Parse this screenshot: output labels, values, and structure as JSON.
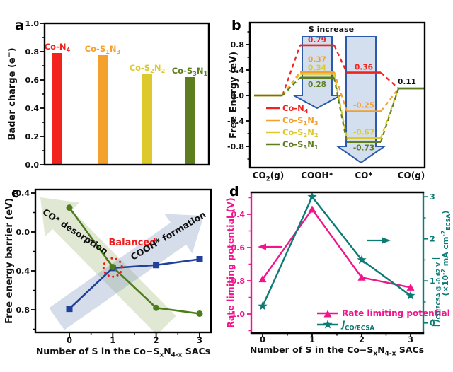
{
  "figure": {
    "panels": [
      {
        "letter": "a"
      },
      {
        "letter": "b"
      },
      {
        "letter": "c"
      },
      {
        "letter": "d"
      }
    ]
  },
  "chart_data": [
    {
      "id": "a",
      "type": "bar",
      "ylabel": "Bader charge (e^−^)",
      "ylim": [
        0.0,
        1.0
      ],
      "ytick_labels": [
        "0.0",
        "0.2",
        "0.4",
        "0.6",
        "0.8",
        "1.0"
      ],
      "yticks": [
        0.0,
        0.2,
        0.4,
        0.6,
        0.8,
        1.0
      ],
      "yminor": [
        0.1,
        0.3,
        0.5,
        0.7,
        0.9
      ],
      "categories": [
        "Co-N~4~",
        "Co-S~1~N~3~",
        "Co-S~2~N~2~",
        "Co-S~3~N~1~"
      ],
      "values": [
        0.79,
        0.775,
        0.64,
        0.62
      ],
      "bar_colors": [
        "#f2231e",
        "#f4a02c",
        "#ddc92b",
        "#5e7d1f"
      ]
    },
    {
      "id": "b",
      "type": "step-diagram",
      "title": "S increase",
      "ylabel": "Free Energy (eV)",
      "yticks": [
        -0.8,
        -0.4,
        0.0,
        0.4,
        0.8
      ],
      "ytick_labels": [
        "-0.8",
        "-0.4",
        "0.0",
        "0.4",
        "0.8"
      ],
      "yminor": [
        -1.0,
        -0.6,
        -0.2,
        0.2,
        0.6,
        1.0
      ],
      "categories": [
        "CO~2~(g)",
        "COOH*",
        "CO*",
        "CO(g)"
      ],
      "series": [
        {
          "name": "Co-N~4~",
          "color": "#f2231e",
          "values": [
            0.0,
            0.79,
            0.36,
            0.11
          ]
        },
        {
          "name": "Co-S~1~N~3~",
          "color": "#f4a02c",
          "values": [
            0.0,
            0.37,
            -0.25,
            0.11
          ]
        },
        {
          "name": "Co-S~2~N~2~",
          "color": "#ddc92b",
          "values": [
            0.0,
            0.34,
            -0.67,
            0.11
          ]
        },
        {
          "name": "Co-S~3~N~1~",
          "color": "#5e7d1f",
          "values": [
            0.0,
            0.28,
            -0.73,
            0.11
          ]
        }
      ],
      "value_labels": [
        {
          "text": "0.79",
          "series": 0,
          "step": 1
        },
        {
          "text": "0.37",
          "series": 1,
          "step": 1
        },
        {
          "text": "0.34",
          "series": 2,
          "step": 1
        },
        {
          "text": "0.28",
          "series": 3,
          "step": 1
        },
        {
          "text": "0.36",
          "series": 0,
          "step": 2
        },
        {
          "text": "-0.25",
          "series": 1,
          "step": 2
        },
        {
          "text": "-0.67",
          "series": 2,
          "step": 2
        },
        {
          "text": "-0.73",
          "series": 3,
          "step": 2
        },
        {
          "text": "0.11",
          "series": -1,
          "step": 3
        }
      ],
      "arrow_fill": "#cfdbee",
      "arrow_stroke": "#2c5aa8"
    },
    {
      "id": "c",
      "type": "line",
      "xlabel": "Number of S in the Co−S~x~N~4-x~ SACs",
      "ylabel": "Free energy barrier (eV)",
      "x": [
        0,
        1,
        2,
        3
      ],
      "xtick_labels": [
        "0",
        "1",
        "2",
        "3"
      ],
      "yticks": [
        -0.4,
        0.0,
        0.4,
        0.8
      ],
      "ytick_labels": [
        "-0.4",
        "0.0",
        "0.4",
        "0.8"
      ],
      "yminor": [
        -0.2,
        0.2,
        0.6,
        1.0
      ],
      "y_inverted": true,
      "series": [
        {
          "name": "COOH* formation",
          "color": "#21409a",
          "marker": "square",
          "values": [
            0.79,
            0.37,
            0.34,
            0.28
          ]
        },
        {
          "name": "CO* desorption",
          "color": "#4d7c1d",
          "marker": "circle",
          "values": [
            -0.25,
            0.36,
            0.78,
            0.84
          ]
        }
      ],
      "bg_arrow_labels": [
        "CO* desorption",
        "COOH* formation"
      ],
      "bg_arrow_colors": [
        "rgba(151,175,110,0.30)",
        "rgba(125,150,190,0.32)"
      ],
      "balanced_label": "Balanced",
      "balanced_color": "#ee1c1c"
    },
    {
      "id": "d",
      "type": "dual-line",
      "xlabel": "Number of S in the Co−S~x~N~4-x~ SACs",
      "x": [
        0,
        1,
        2,
        3
      ],
      "xtick_labels": [
        "0",
        "1",
        "2",
        "3"
      ],
      "left": {
        "label": "Rate limiting potential (V)",
        "color": "#f1148c",
        "ticks": [
          0.4,
          0.6,
          0.8,
          1.0
        ],
        "tick_labels": [
          "0.4",
          "0.6",
          "0.8",
          "1.0"
        ],
        "minor": [
          0.3,
          0.5,
          0.7,
          0.9,
          1.1
        ],
        "inverted": true,
        "series": {
          "name": "Rate limiting potential",
          "marker": "triangle",
          "values": [
            0.79,
            0.37,
            0.78,
            0.84
          ]
        }
      },
      "right": {
        "label_inner": "| %j%~CO/ECSA @ -0.62 V~ |",
        "label_outer": "(×10^-2^ mA cm^-2^~ECSA~)",
        "color": "#0c7b76",
        "ticks": [
          0,
          1,
          2,
          3
        ],
        "tick_labels": [
          "0",
          "1",
          "2",
          "3"
        ],
        "minor": [
          0.5,
          1.5,
          2.5
        ],
        "series": {
          "name": "%j%~CO/ECSA~",
          "marker": "star",
          "values": [
            0.4,
            3.0,
            1.5,
            0.65
          ]
        }
      }
    }
  ]
}
